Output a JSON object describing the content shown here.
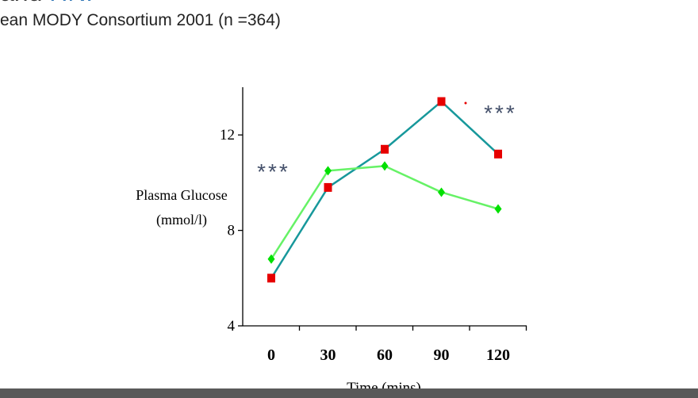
{
  "slide": {
    "title_partial": "and",
    "title_partial_accent": "HNF",
    "subtitle": "ean MODY Consortium 2001 (n =364)"
  },
  "chart_data": {
    "type": "line",
    "x": [
      0,
      30,
      60,
      90,
      120
    ],
    "x_tick_labels": [
      "0",
      "30",
      "60",
      "90",
      "120"
    ],
    "xlabel": "Time (mins)",
    "ylabel_line1": "Plasma Glucose",
    "ylabel_line2": "(mmol/l)",
    "ylim": [
      4,
      14
    ],
    "y_ticks": [
      4,
      8,
      12
    ],
    "y_tick_labels": [
      "4",
      "8",
      "12"
    ],
    "grid": false,
    "series": [
      {
        "marker": "square",
        "color": "#e60000",
        "line_color": "#17989b",
        "values": [
          6.0,
          9.8,
          11.4,
          13.4,
          11.2
        ]
      },
      {
        "marker": "diamond",
        "color": "#00e000",
        "line_color": "#66f266",
        "values": [
          6.8,
          10.5,
          10.7,
          9.6,
          8.9
        ]
      }
    ],
    "annotations": [
      {
        "text": "***",
        "color": "#44506a"
      },
      {
        "text": "***",
        "color": "#44506a"
      }
    ]
  },
  "colors": {
    "axis": "#000000",
    "bottom_bar": "#595959"
  }
}
